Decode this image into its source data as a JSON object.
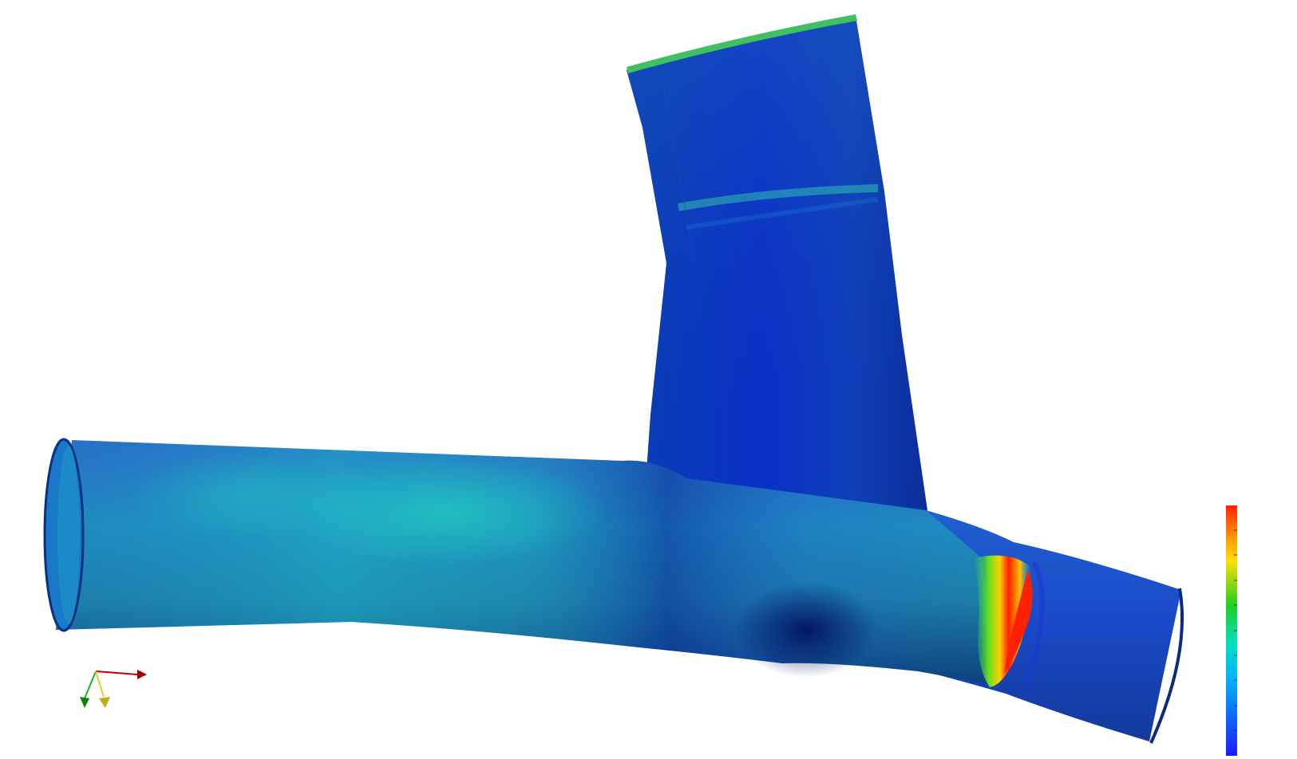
{
  "colors": {
    "background": "#ffffff",
    "colormap_low": "#1a1aff",
    "colormap_mid_low": "#00d0e0",
    "colormap_mid": "#20d020",
    "colormap_mid_high": "#ffe000",
    "colormap_high": "#ff2000",
    "axis_x": "#c00000",
    "axis_y": "#20b020",
    "axis_z": "#e0d020"
  },
  "colorbar": {
    "range": [
      0,
      1
    ],
    "stops": [
      "#1a1aff",
      "#00d0e0",
      "#20d020",
      "#ffe000",
      "#ff2000"
    ]
  },
  "icons": {
    "orientation_axes": "xyz-axes-icon"
  }
}
